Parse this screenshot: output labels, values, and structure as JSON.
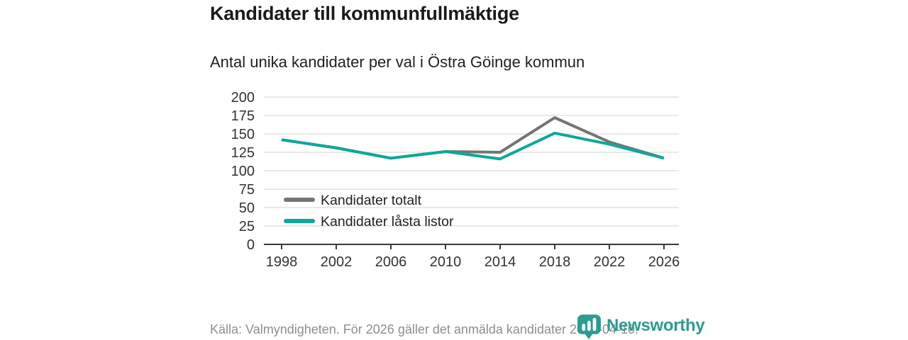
{
  "title": "Kandidater till kommunfullmäktige",
  "subtitle": "Antal unika kandidater per val i Östra Göinge kommun",
  "footer": {
    "source": "Källa: Valmyndigheten. För 2026 gäller det anmälda kandidater 2026-04-10."
  },
  "branding": {
    "name": "Newsworthy",
    "icon": "speech-bubble-bar-chart-icon",
    "color": "#2a9c92"
  },
  "colors": {
    "background": "#ffffff",
    "title_text": "#1a1a1a",
    "subtitle_text": "#212121",
    "axis_label_text": "#333333",
    "axis_line": "#3a3a3a",
    "gridline": "#e2e2e2",
    "footer_text": "#8e8e8e",
    "series_total": "#757575",
    "series_locked": "#0ca89b"
  },
  "chart_data": {
    "type": "line",
    "title": "Kandidater till kommunfullmäktige",
    "subtitle": "Antal unika kandidater per val i Östra Göinge kommun",
    "xlabel": "",
    "ylabel": "",
    "categories": [
      "1998",
      "2002",
      "2006",
      "2010",
      "2014",
      "2018",
      "2022",
      "2026"
    ],
    "series": [
      {
        "name": "Kandidater totalt",
        "color": "#757575",
        "values": [
          142,
          131,
          117,
          126,
          125,
          172,
          139,
          117
        ]
      },
      {
        "name": "Kandidater låsta listor",
        "color": "#0ca89b",
        "values": [
          142,
          131,
          117,
          126,
          116,
          151,
          136,
          117
        ]
      }
    ],
    "ylim": [
      0,
      200
    ],
    "yticks": [
      0,
      25,
      50,
      75,
      100,
      125,
      150,
      175,
      200
    ],
    "grid": true,
    "legend_position": "inside-bottom-left"
  }
}
